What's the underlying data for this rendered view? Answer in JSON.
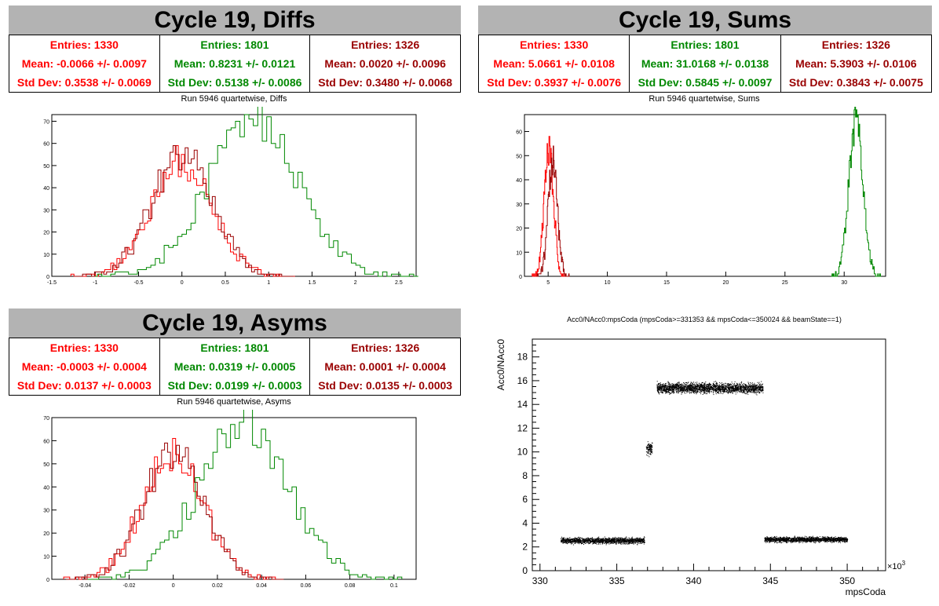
{
  "colors": {
    "red": "#ff0000",
    "green": "#008800",
    "darkred": "#990000",
    "header": "#b3b3b3"
  },
  "panels": {
    "diffs": {
      "title": "Cycle 19, Diffs",
      "subtitle": "Run 5946 quartetwise, Diffs",
      "stats": [
        {
          "entries": "Entries: 1330",
          "mean": "Mean: -0.0066 +/- 0.0097",
          "std": "Std Dev: 0.3538 +/- 0.0069",
          "color": "#ff0000"
        },
        {
          "entries": "Entries: 1801",
          "mean": "Mean: 0.8231 +/- 0.0121",
          "std": "Std Dev: 0.5138 +/- 0.0086",
          "color": "#008800"
        },
        {
          "entries": "Entries: 1326",
          "mean": "Mean: 0.0020 +/- 0.0096",
          "std": "Std Dev: 0.3480 +/- 0.0068",
          "color": "#990000"
        }
      ]
    },
    "sums": {
      "title": "Cycle 19, Sums",
      "subtitle": "Run 5946 quartetwise, Sums",
      "stats": [
        {
          "entries": "Entries: 1330",
          "mean": "Mean: 5.0661 +/- 0.0108",
          "std": "Std Dev: 0.3937 +/- 0.0076",
          "color": "#ff0000"
        },
        {
          "entries": "Entries: 1801",
          "mean": "Mean: 31.0168 +/- 0.0138",
          "std": "Std Dev: 0.5845 +/- 0.0097",
          "color": "#008800"
        },
        {
          "entries": "Entries: 1326",
          "mean": "Mean: 5.3903 +/- 0.0106",
          "std": "Std Dev: 0.3843 +/- 0.0075",
          "color": "#990000"
        }
      ]
    },
    "asyms": {
      "title": "Cycle 19, Asyms",
      "subtitle": "Run 5946 quartetwise, Asyms",
      "stats": [
        {
          "entries": "Entries: 1330",
          "mean": "Mean: -0.0003 +/- 0.0004",
          "std": "Std Dev: 0.0137 +/- 0.0003",
          "color": "#ff0000"
        },
        {
          "entries": "Entries: 1801",
          "mean": "Mean: 0.0319 +/- 0.0005",
          "std": "Std Dev: 0.0199 +/- 0.0003",
          "color": "#008800"
        },
        {
          "entries": "Entries: 1326",
          "mean": "Mean: 0.0001 +/- 0.0004",
          "std": "Std Dev: 0.0135 +/- 0.0003",
          "color": "#990000"
        }
      ]
    },
    "scatter": {
      "title": "Acc0/NAcc0:mpsCoda (mpsCoda>=331353 && mpsCoda<=350024 && beamState==1)"
    }
  },
  "chart_data": [
    {
      "id": "diffs",
      "type": "histogram",
      "xlim": [
        -1.5,
        2.7
      ],
      "ylim": [
        0,
        73
      ],
      "xticks": [
        -1.5,
        -1,
        -0.5,
        0,
        0.5,
        1,
        1.5,
        2,
        2.5
      ],
      "yticks": [
        0,
        10,
        20,
        30,
        40,
        50,
        60,
        70
      ],
      "series": [
        {
          "mean": -0.0066,
          "std": 0.3538,
          "peak": 52,
          "color": "#ff0000"
        },
        {
          "mean": 0.8231,
          "std": 0.5138,
          "peak": 71,
          "color": "#008800"
        },
        {
          "mean": 0.002,
          "std": 0.348,
          "peak": 55,
          "color": "#990000"
        }
      ]
    },
    {
      "id": "sums",
      "type": "histogram",
      "xlim": [
        3.0,
        33.5
      ],
      "ylim": [
        0,
        67
      ],
      "xticks": [
        5,
        10,
        15,
        20,
        25,
        30
      ],
      "yticks": [
        0,
        10,
        20,
        30,
        40,
        50,
        60
      ],
      "series": [
        {
          "mean": 5.0661,
          "std": 0.3937,
          "peak": 53,
          "color": "#ff0000"
        },
        {
          "mean": 31.0168,
          "std": 0.5845,
          "peak": 66,
          "color": "#008800"
        },
        {
          "mean": 5.3903,
          "std": 0.3843,
          "peak": 48,
          "color": "#990000"
        }
      ]
    },
    {
      "id": "asyms",
      "type": "histogram",
      "xlim": [
        -0.055,
        0.11
      ],
      "ylim": [
        0,
        70
      ],
      "xticks": [
        -0.04,
        -0.02,
        0,
        0.02,
        0.04,
        0.06,
        0.08,
        0.1
      ],
      "yticks": [
        0,
        10,
        20,
        30,
        40,
        50,
        60,
        70
      ],
      "series": [
        {
          "mean": -0.0003,
          "std": 0.0137,
          "peak": 54,
          "color": "#ff0000"
        },
        {
          "mean": 0.0319,
          "std": 0.0199,
          "peak": 68,
          "color": "#008800"
        },
        {
          "mean": 0.0001,
          "std": 0.0135,
          "peak": 55,
          "color": "#990000"
        }
      ]
    },
    {
      "id": "scatter",
      "type": "scatter",
      "xlabel": "mpsCoda",
      "ylabel": "Acc0/NAcc0",
      "xexponent": "×10",
      "xexponent_power": "3",
      "xlim": [
        329.5,
        352.5
      ],
      "ylim": [
        0,
        19.5
      ],
      "xticks": [
        330,
        335,
        340,
        345,
        350
      ],
      "yticks": [
        0,
        2,
        4,
        6,
        8,
        10,
        12,
        14,
        16,
        18
      ],
      "clusters": [
        {
          "x": [
            331.35,
            336.8
          ],
          "y_center": 2.55,
          "y_spread": 0.35,
          "points": 1500
        },
        {
          "x": [
            336.9,
            337.3
          ],
          "y_center": 10.3,
          "y_spread": 0.7,
          "points": 120
        },
        {
          "x": [
            337.6,
            344.5
          ],
          "y_center": 15.4,
          "y_spread": 0.6,
          "points": 2300
        },
        {
          "x": [
            344.6,
            350.0
          ],
          "y_center": 2.65,
          "y_spread": 0.3,
          "points": 1500
        }
      ]
    }
  ]
}
